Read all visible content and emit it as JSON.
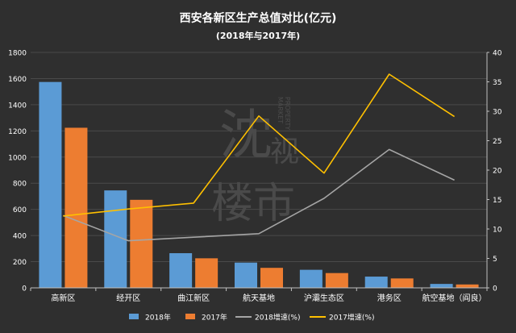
{
  "chart_data": {
    "type": "bar",
    "title": "西安各新区生产总值对比(亿元)",
    "subtitle": "(2018年与2017年)",
    "categories": [
      "高新区",
      "经开区",
      "曲江新区",
      "航天基地",
      "沪灞生态区",
      "港务区",
      "航空基地（阎良）"
    ],
    "series": [
      {
        "name": "2018年",
        "type": "bar",
        "axis": "left",
        "color": "#5b9bd5",
        "values": [
          1574,
          745,
          265,
          193,
          138,
          86,
          30
        ]
      },
      {
        "name": "2017年",
        "type": "bar",
        "axis": "left",
        "color": "#ed7d31",
        "values": [
          1224,
          673,
          226,
          153,
          113,
          72,
          26
        ]
      },
      {
        "name": "2018增速(%)",
        "type": "line",
        "axis": "right",
        "color": "#a5a5a5",
        "values": [
          12.3,
          8.0,
          8.6,
          9.2,
          15.2,
          23.5,
          18.3
        ]
      },
      {
        "name": "2017增速(%)",
        "type": "line",
        "axis": "right",
        "color": "#ffc000",
        "values": [
          12.2,
          13.4,
          14.4,
          29.2,
          19.5,
          36.3,
          29.1
        ]
      }
    ],
    "y_left": {
      "range": [
        0,
        1800
      ],
      "ticks": [
        "0",
        "200",
        "400",
        "600",
        "800",
        "1000",
        "1200",
        "1400",
        "1600",
        "1800"
      ]
    },
    "y_right": {
      "range": [
        0,
        40
      ],
      "ticks": [
        "0",
        "5",
        "10",
        "15",
        "20",
        "25",
        "30",
        "35",
        "40"
      ]
    },
    "grid": true,
    "legend": "bottom",
    "watermark": "沈视楼市 PROPERTY MARKET"
  }
}
